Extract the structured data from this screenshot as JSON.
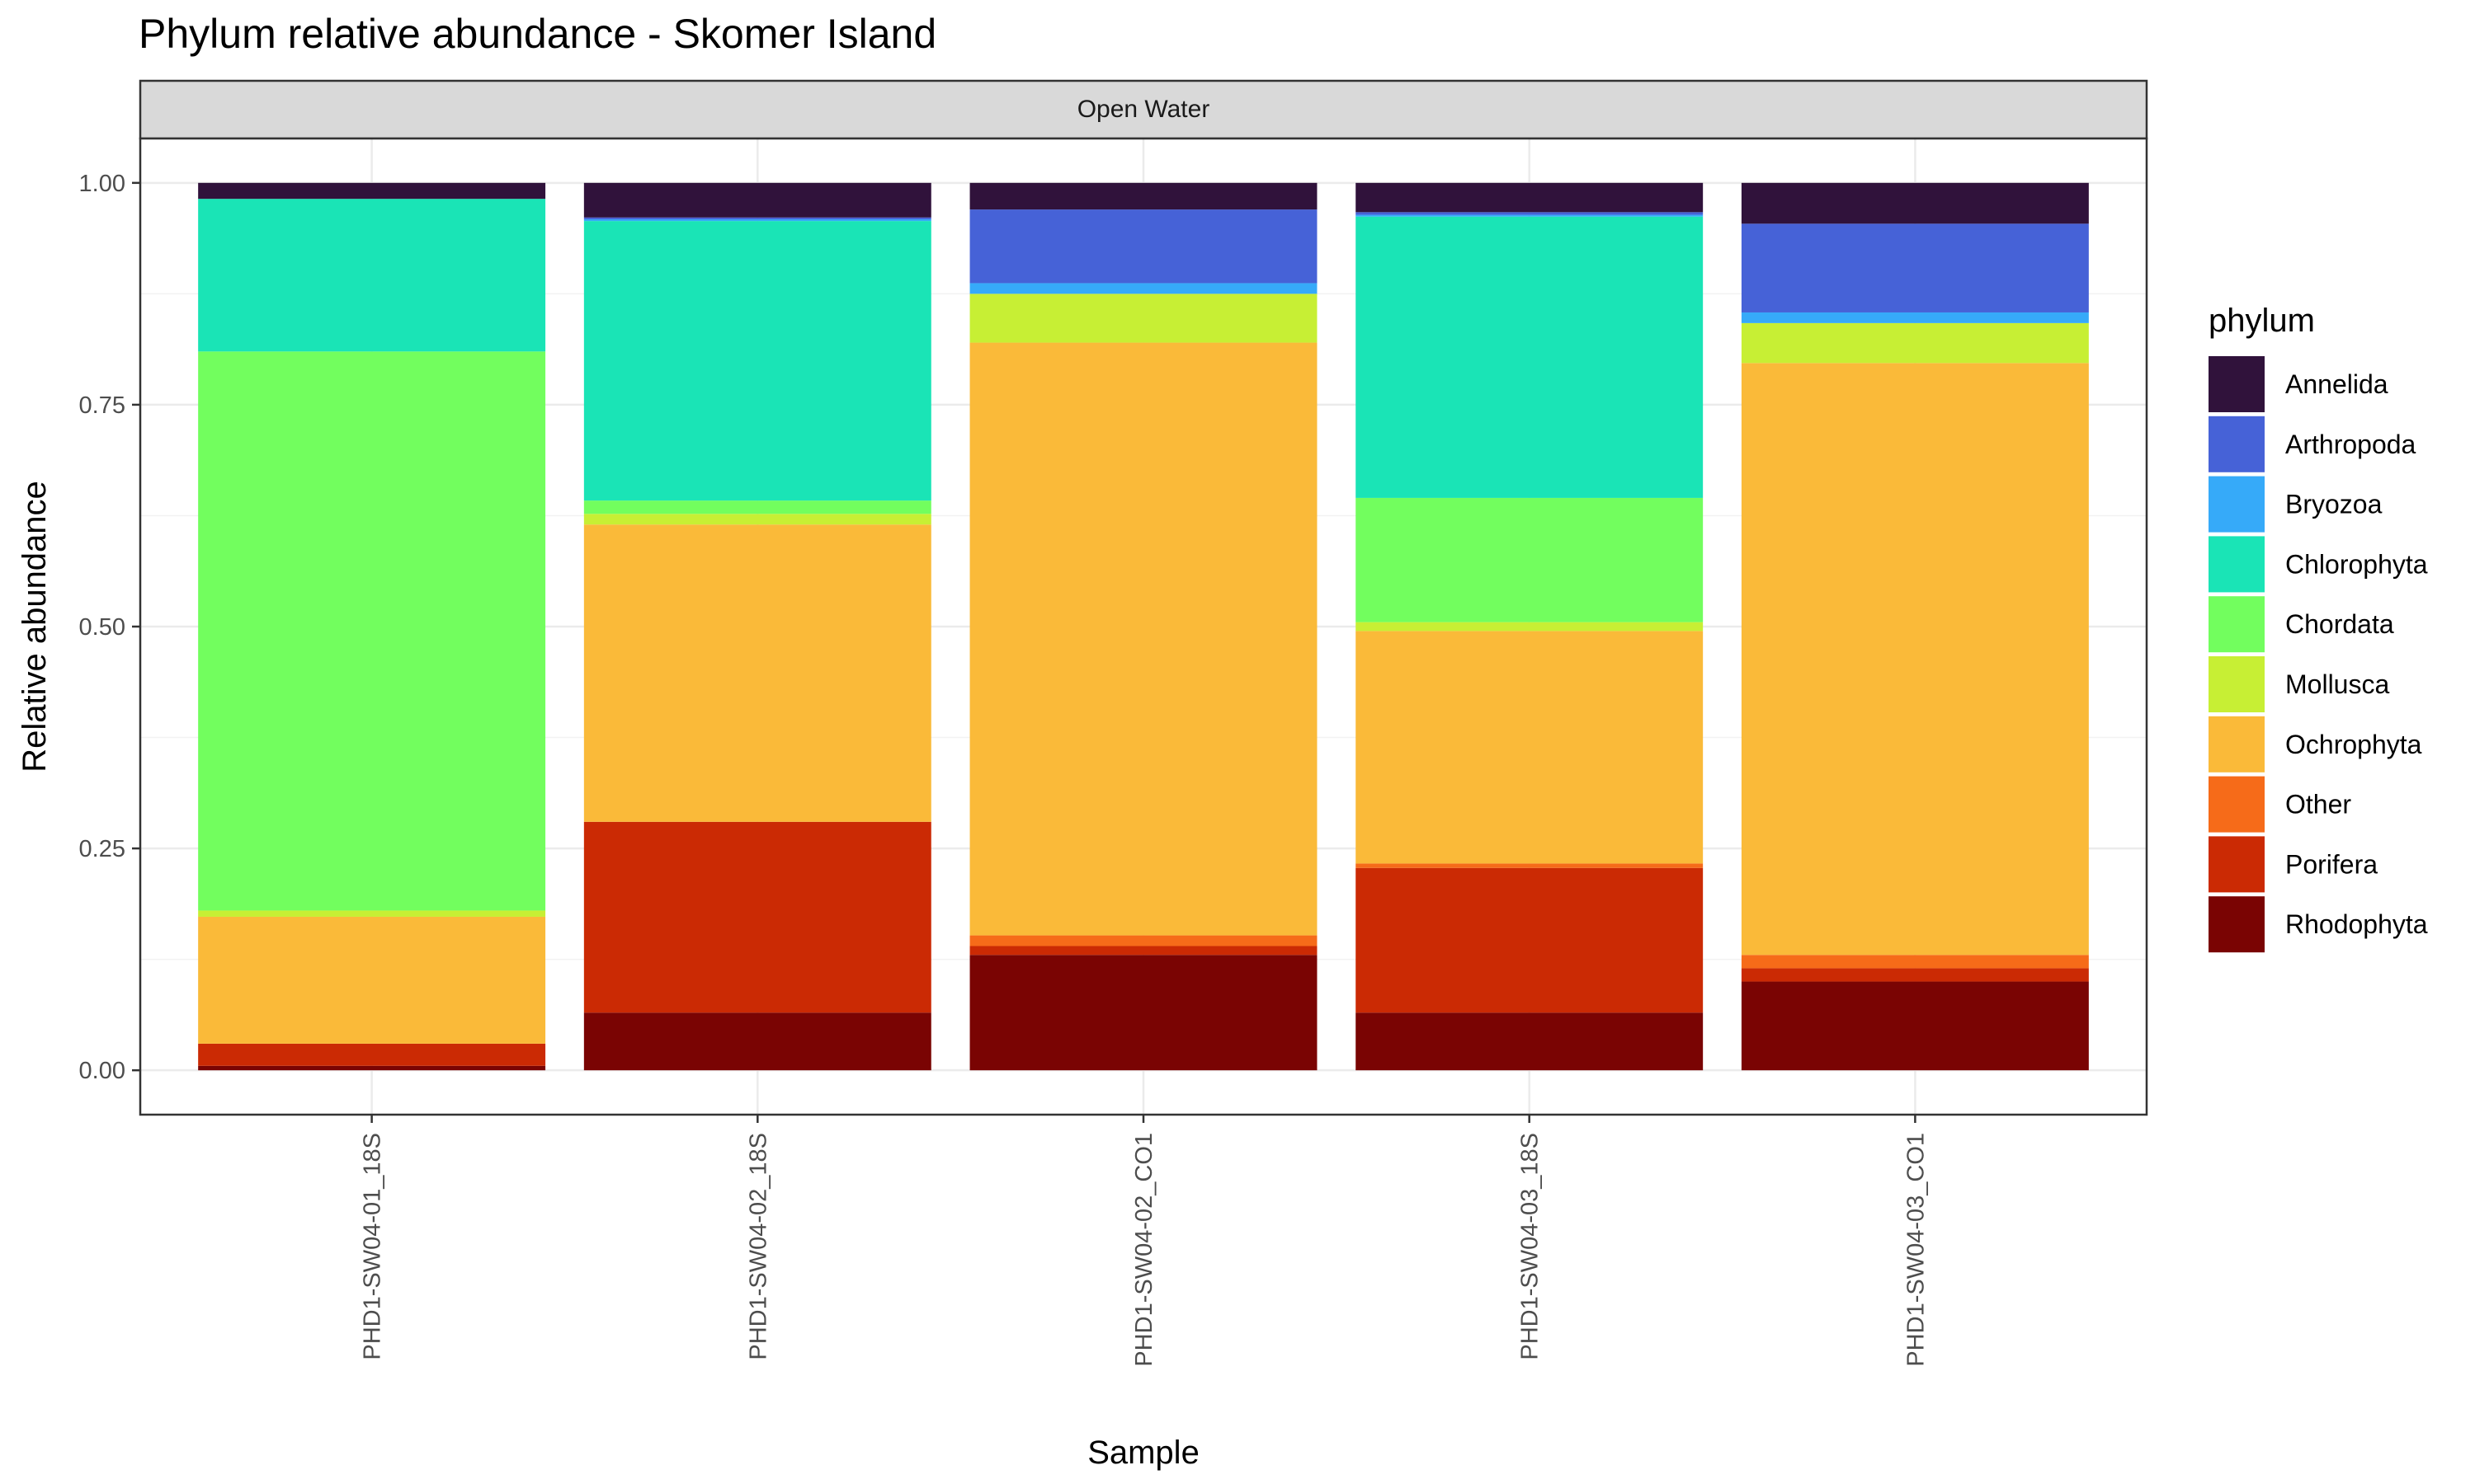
{
  "chart_data": {
    "type": "bar",
    "stacked": true,
    "title": "Phylum relative abundance - Skomer Island",
    "facet": "Open Water",
    "xlabel": "Sample",
    "ylabel": "Relative abundance",
    "ylim": [
      0,
      1
    ],
    "yticks": [
      "0.00",
      "0.25",
      "0.50",
      "0.75",
      "1.00"
    ],
    "grid": true,
    "legend_title": "phylum",
    "legend_position": "right",
    "categories": [
      "PHD1-SW04-01_18S",
      "PHD1-SW04-02_18S",
      "PHD1-SW04-02_CO1",
      "PHD1-SW04-03_18S",
      "PHD1-SW04-03_CO1"
    ],
    "series": [
      {
        "name": "Rhodophyta",
        "color": "#7A0403",
        "values": [
          0.005,
          0.065,
          0.13,
          0.065,
          0.1
        ]
      },
      {
        "name": "Porifera",
        "color": "#CB2A04",
        "values": [
          0.025,
          0.215,
          0.01,
          0.163,
          0.015
        ]
      },
      {
        "name": "Other",
        "color": "#F66B19",
        "values": [
          0.0,
          0.0,
          0.012,
          0.005,
          0.015
        ]
      },
      {
        "name": "Ochrophyta",
        "color": "#FABA39",
        "values": [
          0.143,
          0.335,
          0.668,
          0.262,
          0.667
        ]
      },
      {
        "name": "Mollusca",
        "color": "#C7EF34",
        "values": [
          0.007,
          0.012,
          0.055,
          0.01,
          0.045
        ]
      },
      {
        "name": "Chordata",
        "color": "#72FE5E",
        "values": [
          0.63,
          0.015,
          0.0,
          0.14,
          0.0
        ]
      },
      {
        "name": "Chlorophyta",
        "color": "#1AE4B6",
        "values": [
          0.172,
          0.315,
          0.0,
          0.317,
          0.0
        ]
      },
      {
        "name": "Bryozoa",
        "color": "#36AAF9",
        "values": [
          0.0,
          0.002,
          0.012,
          0.002,
          0.012
        ]
      },
      {
        "name": "Arthropoda",
        "color": "#4662D7",
        "values": [
          0.0,
          0.002,
          0.083,
          0.003,
          0.1
        ]
      },
      {
        "name": "Annelida",
        "color": "#30123B",
        "values": [
          0.018,
          0.039,
          0.03,
          0.033,
          0.046
        ]
      }
    ],
    "legend_order": [
      "Annelida",
      "Arthropoda",
      "Bryozoa",
      "Chlorophyta",
      "Chordata",
      "Mollusca",
      "Ochrophyta",
      "Other",
      "Porifera",
      "Rhodophyta"
    ]
  }
}
